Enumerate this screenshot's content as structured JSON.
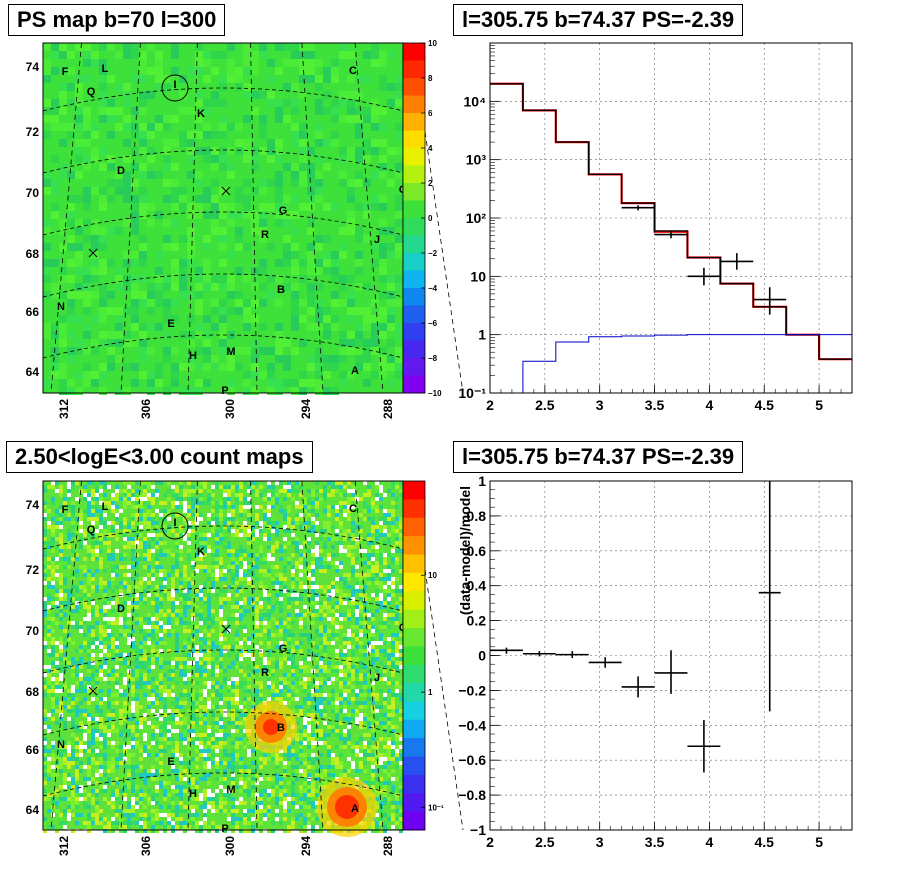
{
  "panels": {
    "ps_map_title": "PS map b=70 l=300",
    "spectrum_title": "l=305.75 b=74.37 PS=-2.39",
    "count_map_title": "2.50<logE<3.00 count maps",
    "residual_title": "l=305.75 b=74.37 PS=-2.39"
  },
  "sky_maps": {
    "lat_ticks": [
      "74",
      "72",
      "70",
      "68",
      "66",
      "64"
    ],
    "lon_ticks": [
      "312",
      "306",
      "300",
      "294",
      "288"
    ],
    "sources": [
      "F",
      "L",
      "C",
      "Q",
      "I",
      "K",
      "D",
      "O",
      "G",
      "R",
      "J",
      "N",
      "B",
      "E",
      "M",
      "H",
      "A",
      "P"
    ],
    "ps_colorbar_ticks": [
      "10",
      "8",
      "6",
      "4",
      "2",
      "0",
      "−2",
      "−4",
      "−6",
      "−8",
      "−10"
    ],
    "count_colorbar_ticks": [
      "10",
      "1",
      "10⁻¹"
    ]
  },
  "chart_data": [
    {
      "type": "line",
      "scale": "log-y",
      "xlim": [
        2,
        5.3
      ],
      "ylim": [
        0.1,
        100000
      ],
      "x_ticks": [
        "2",
        "2.5",
        "3",
        "3.5",
        "4",
        "4.5",
        "5"
      ],
      "y_ticks": [
        "10⁻¹",
        "1",
        "10",
        "10²",
        "10³",
        "10⁴"
      ],
      "grid": true,
      "series": [
        {
          "color": "#ff0000",
          "style": "step",
          "edges": [
            2.0,
            2.3,
            2.6,
            2.9,
            3.2,
            3.5,
            3.8,
            4.1,
            4.4,
            4.7,
            5.0,
            5.3
          ],
          "values": [
            20000,
            7000,
            2000,
            560,
            180,
            58,
            21,
            7.5,
            3,
            1,
            0.38
          ]
        },
        {
          "color": "#000000",
          "style": "step",
          "edges": [
            2.0,
            2.3,
            2.6,
            2.9,
            3.2,
            3.5,
            3.8,
            4.1,
            4.4,
            4.7,
            5.0,
            5.3
          ],
          "values": [
            20000,
            7000,
            2000,
            560,
            180,
            60,
            21,
            7.5,
            3,
            1,
            0.38
          ]
        },
        {
          "color": "#0000cc",
          "style": "step",
          "edges": [
            2.0,
            2.3,
            2.6,
            2.9,
            3.2,
            3.5,
            3.8,
            4.1,
            4.4,
            4.7,
            5.0,
            5.3
          ],
          "values": [
            0.1,
            0.35,
            0.75,
            0.92,
            0.95,
            0.98,
            1.0,
            1.0,
            1.0,
            1.0,
            1.0
          ]
        },
        {
          "color": "#000000",
          "style": "errorbar",
          "points": [
            {
              "x": 3.35,
              "y": 150,
              "xerr": 0.15,
              "ylo": 135,
              "yhi": 165
            },
            {
              "x": 3.65,
              "y": 52,
              "xerr": 0.15,
              "ylo": 45,
              "yhi": 60
            },
            {
              "x": 3.95,
              "y": 10,
              "xerr": 0.15,
              "ylo": 7,
              "yhi": 14
            },
            {
              "x": 4.25,
              "y": 18,
              "xerr": 0.15,
              "ylo": 13,
              "yhi": 25
            },
            {
              "x": 4.55,
              "y": 4,
              "xerr": 0.15,
              "ylo": 2.2,
              "yhi": 6.5
            }
          ]
        }
      ]
    },
    {
      "type": "scatter",
      "xlim": [
        2,
        5.3
      ],
      "ylim": [
        -1,
        1
      ],
      "x_ticks": [
        "2",
        "2.5",
        "3",
        "3.5",
        "4",
        "4.5",
        "5"
      ],
      "y_ticks": [
        "−1",
        "−0.8",
        "−0.6",
        "−0.4",
        "−0.2",
        "0",
        "0.2",
        "0.4",
        "0.6",
        "0.8",
        "1"
      ],
      "ylabel": "(data-model)/model",
      "grid": true,
      "series": [
        {
          "color": "#000000",
          "style": "errorbar",
          "points": [
            {
              "x": 2.15,
              "y": 0.03,
              "xerr": 0.15,
              "ylo": 0.01,
              "yhi": 0.045
            },
            {
              "x": 2.45,
              "y": 0.01,
              "xerr": 0.15,
              "ylo": -0.005,
              "yhi": 0.025
            },
            {
              "x": 2.75,
              "y": 0.005,
              "xerr": 0.15,
              "ylo": -0.015,
              "yhi": 0.025
            },
            {
              "x": 3.05,
              "y": -0.04,
              "xerr": 0.15,
              "ylo": -0.07,
              "yhi": -0.01
            },
            {
              "x": 3.35,
              "y": -0.18,
              "xerr": 0.15,
              "ylo": -0.24,
              "yhi": -0.12
            },
            {
              "x": 3.65,
              "y": -0.1,
              "xerr": 0.15,
              "ylo": -0.22,
              "yhi": 0.03
            },
            {
              "x": 3.95,
              "y": -0.52,
              "xerr": 0.15,
              "ylo": -0.67,
              "yhi": -0.37
            },
            {
              "x": 4.55,
              "y": 0.36,
              "xerr": 0.1,
              "ylo": -0.32,
              "yhi": 1.0
            }
          ]
        }
      ]
    }
  ]
}
